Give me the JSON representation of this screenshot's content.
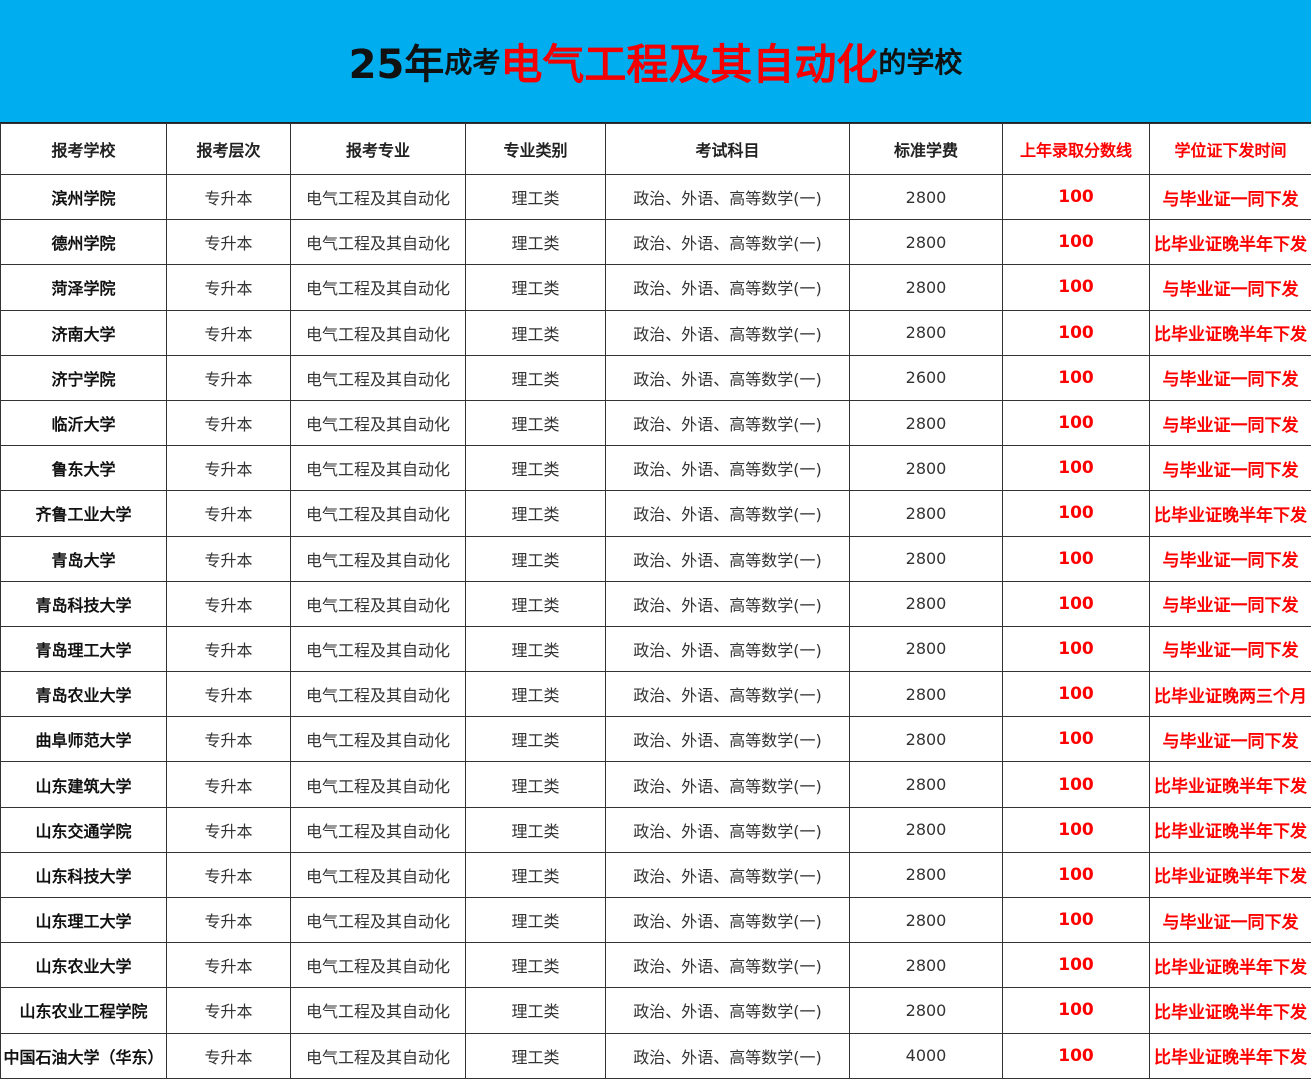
{
  "title": {
    "part1": "25年",
    "part2": "成考",
    "part3": "电气工程及其自动化",
    "part4": "的学校"
  },
  "colors": {
    "banner": "#00aeef",
    "highlight": "#ff0000"
  },
  "headers": [
    "报考学校",
    "报考层次",
    "报考专业",
    "专业类别",
    "考试科目",
    "标准学费",
    "上年录取分数线",
    "学位证下发时间"
  ],
  "rows": [
    [
      "滨州学院",
      "专升本",
      "电气工程及其自动化",
      "理工类",
      "政治、外语、高等数学(一)",
      "2800",
      "100",
      "与毕业证一同下发"
    ],
    [
      "德州学院",
      "专升本",
      "电气工程及其自动化",
      "理工类",
      "政治、外语、高等数学(一)",
      "2800",
      "100",
      "比毕业证晚半年下发"
    ],
    [
      "菏泽学院",
      "专升本",
      "电气工程及其自动化",
      "理工类",
      "政治、外语、高等数学(一)",
      "2800",
      "100",
      "与毕业证一同下发"
    ],
    [
      "济南大学",
      "专升本",
      "电气工程及其自动化",
      "理工类",
      "政治、外语、高等数学(一)",
      "2800",
      "100",
      "比毕业证晚半年下发"
    ],
    [
      "济宁学院",
      "专升本",
      "电气工程及其自动化",
      "理工类",
      "政治、外语、高等数学(一)",
      "2600",
      "100",
      "与毕业证一同下发"
    ],
    [
      "临沂大学",
      "专升本",
      "电气工程及其自动化",
      "理工类",
      "政治、外语、高等数学(一)",
      "2800",
      "100",
      "与毕业证一同下发"
    ],
    [
      "鲁东大学",
      "专升本",
      "电气工程及其自动化",
      "理工类",
      "政治、外语、高等数学(一)",
      "2800",
      "100",
      "与毕业证一同下发"
    ],
    [
      "齐鲁工业大学",
      "专升本",
      "电气工程及其自动化",
      "理工类",
      "政治、外语、高等数学(一)",
      "2800",
      "100",
      "比毕业证晚半年下发"
    ],
    [
      "青岛大学",
      "专升本",
      "电气工程及其自动化",
      "理工类",
      "政治、外语、高等数学(一)",
      "2800",
      "100",
      "与毕业证一同下发"
    ],
    [
      "青岛科技大学",
      "专升本",
      "电气工程及其自动化",
      "理工类",
      "政治、外语、高等数学(一)",
      "2800",
      "100",
      "与毕业证一同下发"
    ],
    [
      "青岛理工大学",
      "专升本",
      "电气工程及其自动化",
      "理工类",
      "政治、外语、高等数学(一)",
      "2800",
      "100",
      "与毕业证一同下发"
    ],
    [
      "青岛农业大学",
      "专升本",
      "电气工程及其自动化",
      "理工类",
      "政治、外语、高等数学(一)",
      "2800",
      "100",
      "比毕业证晚两三个月"
    ],
    [
      "曲阜师范大学",
      "专升本",
      "电气工程及其自动化",
      "理工类",
      "政治、外语、高等数学(一)",
      "2800",
      "100",
      "与毕业证一同下发"
    ],
    [
      "山东建筑大学",
      "专升本",
      "电气工程及其自动化",
      "理工类",
      "政治、外语、高等数学(一)",
      "2800",
      "100",
      "比毕业证晚半年下发"
    ],
    [
      "山东交通学院",
      "专升本",
      "电气工程及其自动化",
      "理工类",
      "政治、外语、高等数学(一)",
      "2800",
      "100",
      "比毕业证晚半年下发"
    ],
    [
      "山东科技大学",
      "专升本",
      "电气工程及其自动化",
      "理工类",
      "政治、外语、高等数学(一)",
      "2800",
      "100",
      "比毕业证晚半年下发"
    ],
    [
      "山东理工大学",
      "专升本",
      "电气工程及其自动化",
      "理工类",
      "政治、外语、高等数学(一)",
      "2800",
      "100",
      "与毕业证一同下发"
    ],
    [
      "山东农业大学",
      "专升本",
      "电气工程及其自动化",
      "理工类",
      "政治、外语、高等数学(一)",
      "2800",
      "100",
      "比毕业证晚半年下发"
    ],
    [
      "山东农业工程学院",
      "专升本",
      "电气工程及其自动化",
      "理工类",
      "政治、外语、高等数学(一)",
      "2800",
      "100",
      "比毕业证晚半年下发"
    ],
    [
      "中国石油大学（华东）",
      "专升本",
      "电气工程及其自动化",
      "理工类",
      "政治、外语、高等数学(一)",
      "4000",
      "100",
      "比毕业证晚半年下发"
    ]
  ]
}
